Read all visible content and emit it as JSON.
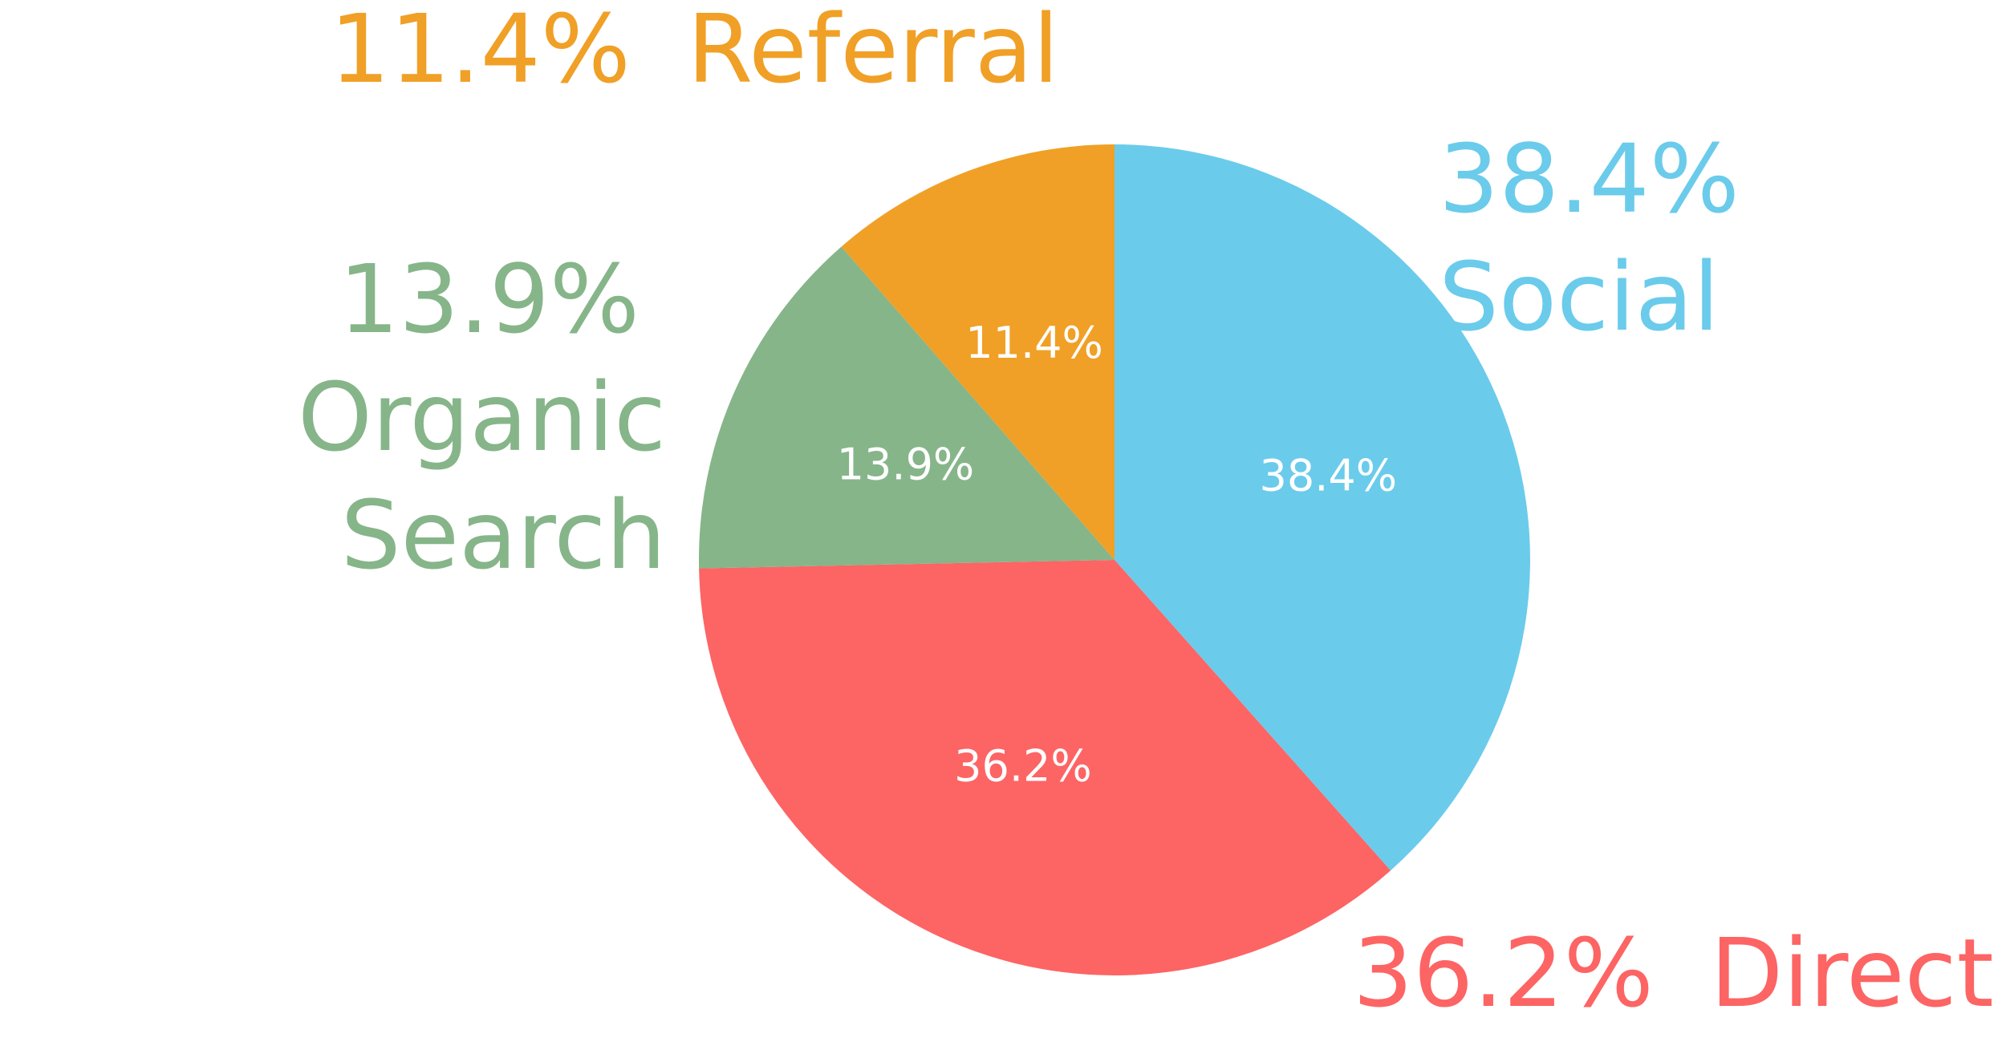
{
  "chart_data": {
    "type": "pie",
    "categories": [
      "Social",
      "Direct",
      "Organic Search",
      "Referral"
    ],
    "values": [
      38.4,
      36.2,
      13.9,
      11.4
    ],
    "value_labels": [
      "38.4%",
      "36.2%",
      "13.9%",
      "11.4%"
    ],
    "colors": [
      "#6bcbeb",
      "#fd6464",
      "#86b589",
      "#f0a026"
    ]
  }
}
